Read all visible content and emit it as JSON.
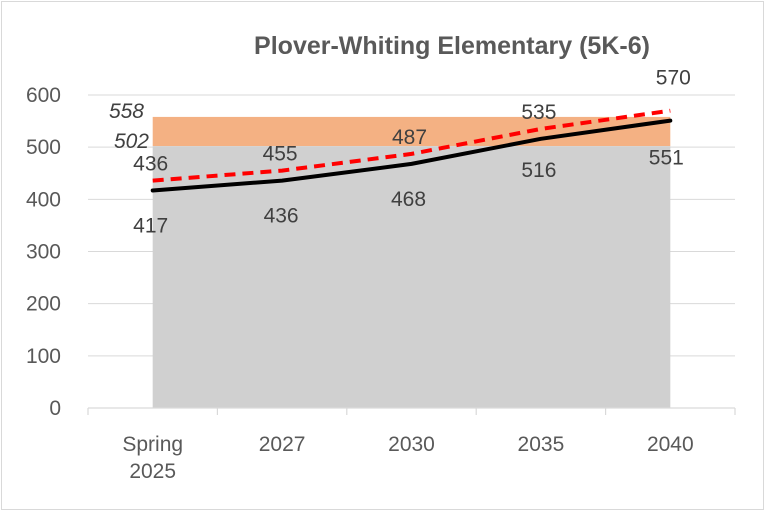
{
  "chart_data": {
    "type": "line",
    "title": "Plover-Whiting Elementary (5K-6)",
    "categories": [
      [
        "Spring",
        "2025"
      ],
      [
        "2027"
      ],
      [
        "2030"
      ],
      [
        "2035"
      ],
      [
        "2040"
      ]
    ],
    "ylim": [
      0,
      600
    ],
    "yticks": [
      0,
      100,
      200,
      300,
      400,
      500,
      600
    ],
    "capacity_bands": {
      "lower": {
        "value": 502,
        "label": "502",
        "color": "#d0d0d0"
      },
      "upper": {
        "value": 558,
        "label": "558",
        "color": "#f4b183"
      }
    },
    "series": [
      {
        "style": "solid",
        "color": "#000000",
        "values": [
          417,
          436,
          468,
          516,
          551
        ],
        "labels": [
          "417",
          "436",
          "468",
          "516",
          "551"
        ]
      },
      {
        "style": "dashed",
        "color": "#ff0000",
        "values": [
          436,
          455,
          487,
          535,
          570
        ],
        "labels": [
          "436",
          "455",
          "487",
          "535",
          "570"
        ]
      }
    ],
    "grid": true,
    "legend": "none"
  }
}
